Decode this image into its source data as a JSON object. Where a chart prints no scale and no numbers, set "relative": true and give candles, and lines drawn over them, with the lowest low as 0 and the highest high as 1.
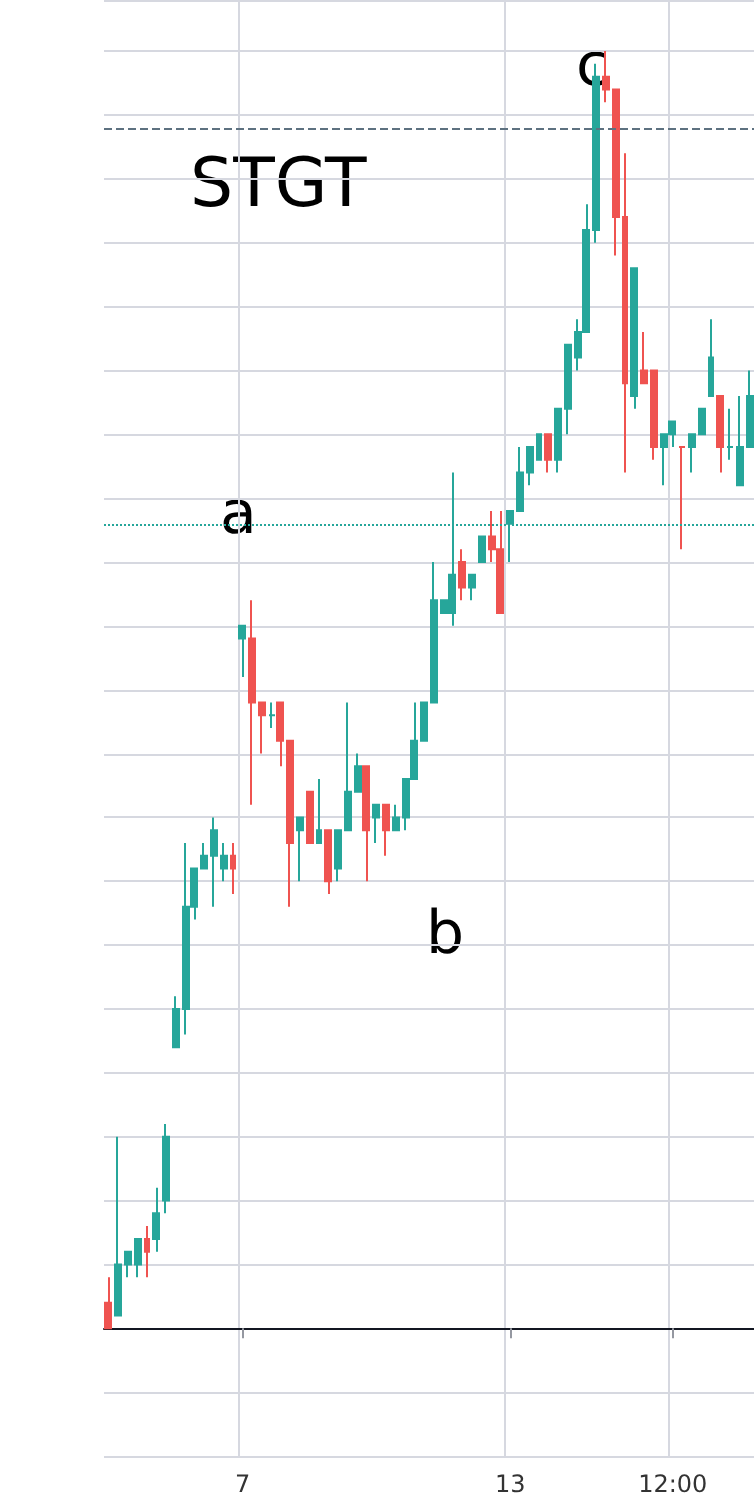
{
  "chart_data": {
    "type": "candlestick",
    "relative": true,
    "grid": true,
    "annotations": [
      "STGT",
      "a",
      "b",
      "c"
    ],
    "categories": [
      null,
      null,
      null,
      null,
      null,
      null,
      null,
      null,
      null,
      null,
      null,
      null,
      null,
      null,
      "7",
      null,
      null,
      null,
      null,
      null,
      null,
      null,
      null,
      null,
      null,
      null,
      null,
      null,
      null,
      null,
      null,
      null,
      null,
      null,
      null,
      null,
      null,
      null,
      null,
      null,
      null,
      null,
      "13",
      null,
      null,
      null,
      null,
      null,
      null,
      null,
      null,
      null,
      null,
      null,
      null,
      null,
      null,
      null,
      null,
      "12:00",
      null,
      null,
      null,
      null,
      null,
      null,
      null,
      null
    ],
    "ohlc": [
      [
        0.02,
        0.04,
        0,
        0
      ],
      [
        0.01,
        0.15,
        0.01,
        0.05
      ],
      [
        0.05,
        0.06,
        0.04,
        0.06
      ],
      [
        0.05,
        0.07,
        0.04,
        0.07
      ],
      [
        0.07,
        0.08,
        0.04,
        0.06
      ],
      [
        0.07,
        0.11,
        0.06,
        0.09
      ],
      [
        0.1,
        0.16,
        0.09,
        0.15
      ],
      [
        0.22,
        0.26,
        0.22,
        0.25
      ],
      [
        0.25,
        0.38,
        0.23,
        0.33
      ],
      [
        0.33,
        0.36,
        0.32,
        0.36
      ],
      [
        0.36,
        0.38,
        0.36,
        0.37
      ],
      [
        0.37,
        0.4,
        0.33,
        0.39
      ],
      [
        0.36,
        0.38,
        0.35,
        0.37
      ],
      [
        0.37,
        0.38,
        0.34,
        0.36
      ],
      [
        0.54,
        0.55,
        0.51,
        0.55
      ],
      [
        0.54,
        0.57,
        0.41,
        0.49
      ],
      [
        0.49,
        0.49,
        0.45,
        0.48
      ],
      [
        0.48,
        0.49,
        0.47,
        0.48
      ],
      [
        0.49,
        0.49,
        0.44,
        0.46
      ],
      [
        0.46,
        0.46,
        0.33,
        0.38
      ],
      [
        0.39,
        0.4,
        0.35,
        0.4
      ],
      [
        0.42,
        0.42,
        0.38,
        0.38
      ],
      [
        0.38,
        0.43,
        0.38,
        0.39
      ],
      [
        0.39,
        0.39,
        0.34,
        0.35
      ],
      [
        0.36,
        0.39,
        0.35,
        0.39
      ],
      [
        0.39,
        0.49,
        0.39,
        0.42
      ],
      [
        0.42,
        0.45,
        0.42,
        0.44
      ],
      [
        0.44,
        0.44,
        0.35,
        0.39
      ],
      [
        0.4,
        0.41,
        0.38,
        0.41
      ],
      [
        0.41,
        0.41,
        0.37,
        0.39
      ],
      [
        0.39,
        0.41,
        0.39,
        0.4
      ],
      [
        0.4,
        0.43,
        0.39,
        0.43
      ],
      [
        0.43,
        0.49,
        0.43,
        0.46
      ],
      [
        0.46,
        0.49,
        0.46,
        0.49
      ],
      [
        0.49,
        0.6,
        0.49,
        0.57
      ],
      [
        0.56,
        0.57,
        0.56,
        0.57
      ],
      [
        0.56,
        0.67,
        0.55,
        0.59
      ],
      [
        0.6,
        0.61,
        0.57,
        0.58
      ],
      [
        0.58,
        0.59,
        0.57,
        0.59
      ],
      [
        0.6,
        0.62,
        0.6,
        0.62
      ],
      [
        0.62,
        0.64,
        0.6,
        0.61
      ],
      [
        0.61,
        0.64,
        0.56,
        0.56
      ],
      [
        0.63,
        0.64,
        0.6,
        0.64
      ],
      [
        0.64,
        0.69,
        0.64,
        0.67
      ],
      [
        0.67,
        0.69,
        0.66,
        0.69
      ],
      [
        0.68,
        0.7,
        0.68,
        0.7
      ],
      [
        0.7,
        0.7,
        0.67,
        0.68
      ],
      [
        0.68,
        0.72,
        0.67,
        0.72
      ],
      [
        0.72,
        0.77,
        0.7,
        0.77
      ],
      [
        0.76,
        0.79,
        0.75,
        0.78
      ],
      [
        0.78,
        0.88,
        0.78,
        0.86
      ],
      [
        0.86,
        0.99,
        0.85,
        0.98
      ],
      [
        0.98,
        1,
        0.96,
        0.97
      ],
      [
        0.97,
        0.97,
        0.84,
        0.87
      ],
      [
        0.87,
        0.92,
        0.67,
        0.74
      ],
      [
        0.73,
        0.83,
        0.72,
        0.83
      ],
      [
        0.75,
        0.78,
        0.74,
        0.74
      ],
      [
        0.75,
        0.75,
        0.68,
        0.69
      ],
      [
        0.69,
        0.7,
        0.66,
        0.7
      ],
      [
        0.7,
        0.71,
        0.69,
        0.71
      ],
      [
        0.69,
        0.69,
        0.61,
        0.69
      ],
      [
        0.69,
        0.7,
        0.67,
        0.7
      ],
      [
        0.7,
        0.72,
        0.7,
        0.72
      ],
      [
        0.73,
        0.79,
        0.73,
        0.76
      ],
      [
        0.73,
        0.73,
        0.67,
        0.69
      ],
      [
        0.69,
        0.72,
        0.68,
        0.69
      ],
      [
        0.66,
        0.73,
        0.66,
        0.69
      ],
      [
        0.69,
        0.75,
        0.69,
        0.73
      ]
    ],
    "colors": [
      "#ef5350",
      "#26a69a",
      "#26a69a",
      "#26a69a",
      "#ef5350",
      "#26a69a",
      "#26a69a",
      "#26a69a",
      "#26a69a",
      "#26a69a",
      "#26a69a",
      "#26a69a",
      "#26a69a",
      "#ef5350",
      "#26a69a",
      "#ef5350",
      "#ef5350",
      "#26a69a",
      "#ef5350",
      "#ef5350",
      "#26a69a",
      "#ef5350",
      "#26a69a",
      "#ef5350",
      "#26a69a",
      "#26a69a",
      "#26a69a",
      "#ef5350",
      "#26a69a",
      "#ef5350",
      "#26a69a",
      "#26a69a",
      "#26a69a",
      "#26a69a",
      "#26a69a",
      "#26a69a",
      "#26a69a",
      "#ef5350",
      "#26a69a",
      "#26a69a",
      "#ef5350",
      "#ef5350",
      "#26a69a",
      "#26a69a",
      "#26a69a",
      "#26a69a",
      "#ef5350",
      "#26a69a",
      "#26a69a",
      "#26a69a",
      "#26a69a",
      "#26a69a",
      "#ef5350",
      "#ef5350",
      "#ef5350",
      "#26a69a",
      "#ef5350",
      "#ef5350",
      "#26a69a",
      "#26a69a",
      "#ef5350",
      "#26a69a",
      "#26a69a",
      "#26a69a",
      "#ef5350",
      "#26a69a",
      "#26a69a",
      "#26a69a"
    ],
    "ref_lines": [
      {
        "axis": "y",
        "value": 0.94,
        "color": "#5d7180",
        "line_style": "dashed"
      },
      {
        "axis": "y",
        "value": 0.63,
        "color": "#26a69a",
        "line_style": "dotted"
      }
    ]
  }
}
